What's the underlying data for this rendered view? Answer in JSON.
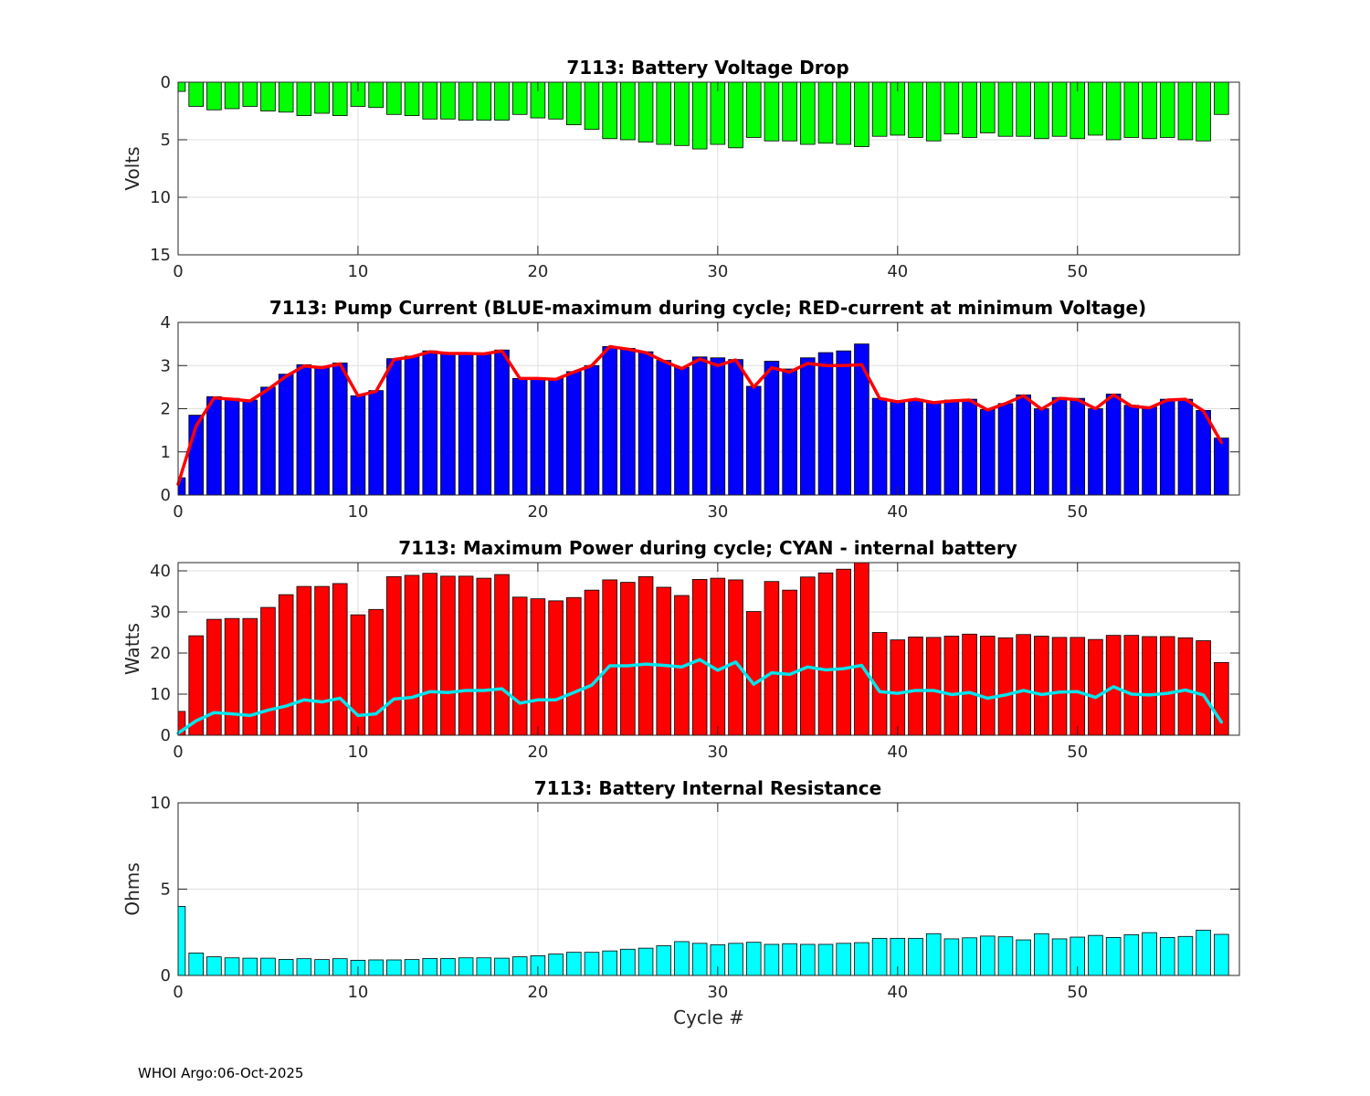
{
  "footer": "WHOI Argo:06-Oct-2025",
  "chart_data": [
    {
      "type": "bar",
      "title": "7113: Battery Voltage Drop",
      "ylabel": "Volts",
      "xlabel": "",
      "xlim": [
        0,
        59
      ],
      "ylim": [
        0,
        15
      ],
      "y_reversed": true,
      "xticks": [
        "0",
        "10",
        "20",
        "30",
        "40",
        "50"
      ],
      "yticks": [
        "0",
        "5",
        "10",
        "15"
      ],
      "grid": true,
      "bar_color": "#00ff00",
      "x": [
        0,
        1,
        2,
        3,
        4,
        5,
        6,
        7,
        8,
        9,
        10,
        11,
        12,
        13,
        14,
        15,
        16,
        17,
        18,
        19,
        20,
        21,
        22,
        23,
        24,
        25,
        26,
        27,
        28,
        29,
        30,
        31,
        32,
        33,
        34,
        35,
        36,
        37,
        38,
        39,
        40,
        41,
        42,
        43,
        44,
        45,
        46,
        47,
        48,
        49,
        50,
        51,
        52,
        53,
        54,
        55,
        56,
        57,
        58
      ],
      "values": [
        0.8,
        2.1,
        2.4,
        2.3,
        2.1,
        2.5,
        2.6,
        2.9,
        2.7,
        2.9,
        2.1,
        2.2,
        2.8,
        2.9,
        3.2,
        3.2,
        3.3,
        3.3,
        3.3,
        2.8,
        3.1,
        3.2,
        3.7,
        4.1,
        4.9,
        5.0,
        5.2,
        5.4,
        5.5,
        5.8,
        5.4,
        5.7,
        4.8,
        5.1,
        5.1,
        5.4,
        5.3,
        5.4,
        5.6,
        4.7,
        4.6,
        4.8,
        5.1,
        4.5,
        4.8,
        4.4,
        4.7,
        4.7,
        4.9,
        4.7,
        4.9,
        4.6,
        5.0,
        4.8,
        4.9,
        4.8,
        5.0,
        5.1,
        2.8
      ]
    },
    {
      "type": "bar",
      "title": "7113: Pump Current (BLUE-maximum during cycle; RED-current at minimum Voltage)",
      "ylabel": "",
      "xlabel": "",
      "xlim": [
        0,
        59
      ],
      "ylim": [
        0,
        4
      ],
      "xticks": [
        "0",
        "10",
        "20",
        "30",
        "40",
        "50"
      ],
      "yticks": [
        "0",
        "1",
        "2",
        "3",
        "4"
      ],
      "grid": true,
      "series": [
        {
          "name": "maximum during cycle",
          "kind": "bar",
          "color": "#0000ff",
          "values": [
            0.4,
            1.85,
            2.28,
            2.24,
            2.2,
            2.5,
            2.8,
            3.02,
            2.98,
            3.06,
            2.3,
            2.42,
            3.16,
            3.22,
            3.34,
            3.3,
            3.3,
            3.28,
            3.36,
            2.7,
            2.72,
            2.7,
            2.86,
            3.0,
            3.44,
            3.4,
            3.32,
            3.12,
            2.96,
            3.2,
            3.18,
            3.14,
            2.52,
            3.1,
            2.92,
            3.18,
            3.3,
            3.34,
            3.5,
            2.24,
            2.18,
            2.22,
            2.16,
            2.2,
            2.22,
            1.98,
            2.12,
            2.32,
            2.0,
            2.26,
            2.24,
            2.0,
            2.34,
            2.08,
            2.04,
            2.22,
            2.22,
            1.96,
            1.32
          ]
        },
        {
          "name": "current at minimum Voltage",
          "kind": "line",
          "color": "#ff0000",
          "values": [
            0.25,
            1.6,
            2.25,
            2.22,
            2.18,
            2.45,
            2.75,
            2.99,
            2.95,
            3.04,
            2.3,
            2.4,
            3.14,
            3.2,
            3.32,
            3.28,
            3.28,
            3.27,
            3.34,
            2.7,
            2.7,
            2.68,
            2.85,
            3.0,
            3.44,
            3.38,
            3.3,
            3.1,
            2.93,
            3.15,
            3.0,
            3.13,
            2.5,
            2.95,
            2.85,
            3.05,
            3.0,
            3.0,
            3.02,
            2.24,
            2.16,
            2.22,
            2.14,
            2.18,
            2.2,
            1.97,
            2.12,
            2.3,
            1.99,
            2.24,
            2.21,
            2.0,
            2.32,
            2.06,
            2.02,
            2.2,
            2.22,
            1.95,
            1.22
          ]
        }
      ]
    },
    {
      "type": "bar",
      "title": "7113: Maximum Power during cycle; CYAN - internal battery",
      "ylabel": "Watts",
      "xlabel": "",
      "xlim": [
        0,
        59
      ],
      "ylim": [
        0,
        42
      ],
      "xticks": [
        "0",
        "10",
        "20",
        "30",
        "40",
        "50"
      ],
      "yticks": [
        "0",
        "10",
        "20",
        "30",
        "40"
      ],
      "grid": true,
      "series": [
        {
          "name": "maximum power",
          "kind": "bar",
          "color": "#ff0000",
          "values": [
            5.8,
            24.2,
            28.2,
            28.4,
            28.4,
            31.1,
            34.2,
            36.2,
            36.2,
            36.9,
            29.3,
            30.6,
            38.6,
            38.9,
            39.4,
            38.7,
            38.7,
            38.2,
            39.1,
            33.6,
            33.2,
            32.7,
            33.5,
            35.3,
            37.8,
            37.2,
            38.6,
            36.0,
            34.0,
            37.9,
            38.2,
            37.8,
            30.1,
            37.4,
            35.3,
            38.5,
            39.5,
            40.4,
            42.0,
            25.0,
            23.2,
            23.9,
            23.8,
            24.1,
            24.6,
            24.1,
            23.7,
            24.5,
            24.1,
            23.8,
            23.8,
            23.3,
            24.3,
            24.3,
            24.0,
            24.0,
            23.7,
            23.0,
            17.7
          ]
        },
        {
          "name": "internal battery",
          "kind": "line",
          "color": "#00e5ee",
          "values": [
            0.5,
            3.5,
            5.5,
            5.2,
            4.8,
            6.1,
            7.1,
            8.6,
            8.1,
            9.0,
            4.8,
            5.2,
            8.8,
            9.2,
            10.6,
            10.4,
            10.9,
            10.9,
            11.3,
            7.8,
            8.6,
            8.6,
            10.4,
            12.2,
            16.9,
            16.9,
            17.3,
            17.0,
            16.6,
            18.4,
            15.8,
            17.8,
            12.4,
            15.2,
            14.8,
            16.6,
            15.9,
            16.2,
            17.0,
            10.6,
            10.2,
            10.9,
            10.9,
            9.9,
            10.4,
            9.0,
            9.8,
            10.9,
            9.9,
            10.5,
            10.6,
            9.2,
            11.8,
            10.0,
            9.8,
            10.2,
            11.0,
            9.8,
            3.2
          ]
        }
      ]
    },
    {
      "type": "bar",
      "title": "7113: Battery Internal Resistance",
      "ylabel": "Ohms",
      "xlabel": "Cycle #",
      "xlim": [
        0,
        59
      ],
      "ylim": [
        0,
        10
      ],
      "xticks": [
        "0",
        "10",
        "20",
        "30",
        "40",
        "50"
      ],
      "yticks": [
        "0",
        "5",
        "10"
      ],
      "grid": true,
      "bar_color": "#00ffff",
      "values": [
        4.0,
        1.3,
        1.08,
        1.02,
        1.0,
        1.0,
        0.93,
        0.97,
        0.92,
        0.97,
        0.88,
        0.9,
        0.9,
        0.92,
        0.98,
        0.98,
        1.02,
        1.02,
        1.0,
        1.08,
        1.14,
        1.24,
        1.34,
        1.34,
        1.42,
        1.52,
        1.58,
        1.72,
        1.96,
        1.86,
        1.78,
        1.86,
        1.92,
        1.8,
        1.84,
        1.8,
        1.8,
        1.86,
        1.9,
        2.15,
        2.15,
        2.15,
        2.42,
        2.12,
        2.18,
        2.28,
        2.24,
        2.06,
        2.42,
        2.12,
        2.22,
        2.32,
        2.2,
        2.36,
        2.48,
        2.2,
        2.26,
        2.62,
        2.38
      ]
    }
  ]
}
